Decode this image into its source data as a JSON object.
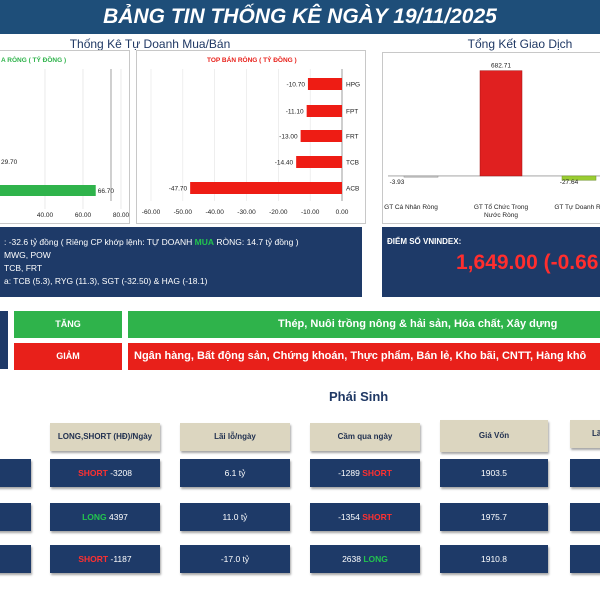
{
  "header": {
    "title": "BẢNG TIN THỐNG KÊ NGÀY 19/11/2025"
  },
  "proprietary": {
    "title": "Thống Kê Tự Doanh Mua/Bán",
    "buy_chart": {
      "type": "bar",
      "legend": "A RÒNG ( TỶ ĐỒNG )",
      "values": [
        29.7,
        66.7
      ],
      "value_labels": [
        "29.70",
        "66.70"
      ],
      "xlim": [
        0,
        80
      ],
      "xticks": [
        "40.00",
        "60.00",
        "80.00"
      ]
    },
    "sell_chart": {
      "type": "bar",
      "legend": "TOP BÁN RÒNG ( TỶ ĐỒNG )",
      "categories": [
        "HPG",
        "FPT",
        "FRT",
        "TCB",
        "ACB"
      ],
      "values": [
        -10.7,
        -11.1,
        -13.0,
        -14.4,
        -47.7
      ],
      "value_labels": [
        "-10.70",
        "-11.10",
        "-13.00",
        "-14.40",
        "-47.70"
      ],
      "xlim": [
        -60,
        0
      ],
      "xticks": [
        "-60.00",
        "-50.00",
        "-40.00",
        "-30.00",
        "-20.00",
        "-10.00",
        "0.00"
      ]
    }
  },
  "summary": {
    "title": "Tổng Kết Giao Dịch",
    "chart": {
      "type": "bar",
      "categories": [
        "GT Cá Nhân Ròng",
        "GT Tổ Chức Trong Nước Ròng",
        "GT Tự Doanh Ròng"
      ],
      "values": [
        -3.93,
        682.71,
        -27.64
      ],
      "value_labels": [
        "-3.93",
        "682.71",
        "-27.64"
      ],
      "ylim": [
        -130,
        700
      ]
    }
  },
  "info": {
    "line1_a": ": -32.6 tỷ đồng ( Riêng CP khớp lệnh: TỰ DOANH ",
    "line1_b": "MUA",
    "line1_c": " RÒNG: 14.7 tỷ đồng )",
    "line2": "MWG, POW",
    "line3": "TCB, FRT",
    "line4": "a: TCB (5.3), RYG (11.3), SGT (-32.50) & HAG (-18.1)"
  },
  "vnindex": {
    "label": "ĐIỂM SỐ VNINDEX:",
    "value": "1,649.00 (-0.66"
  },
  "sectors": {
    "up_label": "TĂNG",
    "up_text": "Thép, Nuôi trồng nông & hải sản, Hóa chất, Xây dựng",
    "down_label": "GIẢM",
    "down_text": "Ngân hàng, Bất động sản, Chứng khoán, Thực phẩm, Bán lẻ, Kho bãi, CNTT, Hàng khô"
  },
  "derivatives": {
    "title": "Phái Sinh",
    "headers": [
      "LONG,SHORT (HĐ)/Ngày",
      "Lãi lỗ/ngày",
      "Cầm qua ngày",
      "Giá Vốn",
      "Lã"
    ],
    "rows": [
      {
        "pos_tag": "SHORT",
        "pos_val": "-3208",
        "pnl": "6.1 tỷ",
        "hold_val": "-1289",
        "hold_tag": "SHORT",
        "cost": "1903.5"
      },
      {
        "pos_tag": "LONG",
        "pos_val": "4397",
        "pnl": "11.0 tỷ",
        "hold_val": "-1354",
        "hold_tag": "SHORT",
        "cost": "1975.7"
      },
      {
        "pos_tag": "SHORT",
        "pos_val": "-1187",
        "pnl": "-17.0 tỷ",
        "hold_val": "2638",
        "hold_tag": "LONG",
        "cost": "1910.8"
      }
    ]
  },
  "colors": {
    "banner": "#1e4e79",
    "navy": "#1e3a68",
    "green": "#2fb34b",
    "red": "#e8201a",
    "header_cell": "#dcd6c0"
  }
}
